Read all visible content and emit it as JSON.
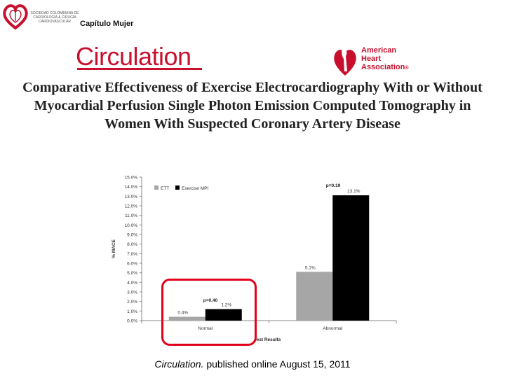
{
  "header": {
    "society_text": "SOCIEDAD COLOMBIANA DE CARDIOLOGÍA & CIRUGÍA CARDIOVASCULAR",
    "tag": "Capítulo Mujer"
  },
  "journal_logo": "Circulation",
  "aha_logo": {
    "line1": "American",
    "line2": "Heart",
    "line3": "Association",
    "mark": "®"
  },
  "title": "Comparative Effectiveness of Exercise Electrocardiography With or Without Myocardial Perfusion Single Photon Emission Computed Tomography in Women With Suspected Coronary Artery Disease",
  "citation": {
    "journal": "Circulation.",
    "text": " published online August 15, 2011"
  },
  "colors": {
    "ett": "#a6a6a6",
    "mpi": "#000000",
    "highlight": "#e3001b",
    "brand": "#c8102e"
  },
  "chart_data": {
    "type": "bar",
    "categories": [
      "Normal",
      "Abnormal"
    ],
    "series": [
      {
        "name": "ETT",
        "values": [
          0.4,
          5.1
        ],
        "labels": [
          "0.4%",
          "5.1%"
        ]
      },
      {
        "name": "Exercise MPI",
        "values": [
          1.2,
          13.1
        ],
        "labels": [
          "1.2%",
          "13.1%"
        ]
      }
    ],
    "ylabel": "% MACE",
    "xlabel": "Test Results",
    "xlabel_visible": "est Results",
    "ylim": [
      0,
      15
    ],
    "yticks": [
      "0.0%",
      "1.0%",
      "2.0%",
      "3.0%",
      "4.0%",
      "5.0%",
      "6.0%",
      "7.0%",
      "8.0%",
      "9.0%",
      "10.0%",
      "11.0%",
      "12.0%",
      "13.0%",
      "14.0%",
      "15.0%"
    ],
    "annotations": [
      "p=0.40",
      "p=0.19"
    ],
    "legend_position": "top-left",
    "grid": false
  }
}
